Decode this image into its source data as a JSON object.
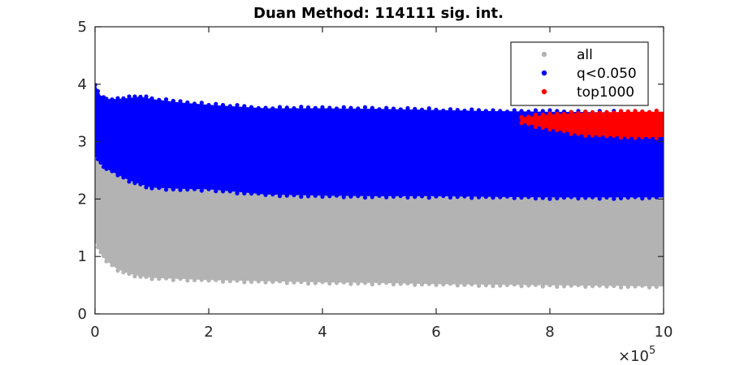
{
  "chart_data": {
    "type": "scatter",
    "title": "Duan Method: 114111 sig. int.",
    "xlabel": "",
    "ylabel": "",
    "xlim": [
      0,
      1000000
    ],
    "ylim": [
      0,
      5
    ],
    "x_ticks": [
      0,
      200000,
      400000,
      600000,
      800000,
      1000000
    ],
    "x_tick_labels": [
      "0",
      "2",
      "4",
      "6",
      "8",
      "10"
    ],
    "x_exponent_label": "×10",
    "x_exponent_power": "5",
    "y_ticks": [
      0,
      1,
      2,
      3,
      4,
      5
    ],
    "y_tick_labels": [
      "0",
      "1",
      "2",
      "3",
      "4",
      "5"
    ],
    "grid": false,
    "legend_position": "top-right",
    "series": [
      {
        "name": "all",
        "color": "#b3b3b3",
        "envelope": {
          "x": [
            0,
            10000,
            20000,
            40000,
            60000,
            80000,
            100000,
            150000,
            200000,
            300000,
            400000,
            500000,
            600000,
            700000,
            800000,
            900000,
            1000000
          ],
          "y_low": [
            1.3,
            1.1,
            0.95,
            0.8,
            0.72,
            0.68,
            0.65,
            0.63,
            0.61,
            0.59,
            0.57,
            0.56,
            0.54,
            0.53,
            0.52,
            0.51,
            0.5
          ],
          "y_high": [
            3.5,
            2.9,
            2.6,
            2.45,
            2.35,
            2.28,
            2.22,
            2.2,
            2.19,
            2.1,
            2.08,
            2.07,
            2.07,
            2.06,
            2.05,
            2.05,
            2.05
          ]
        }
      },
      {
        "name": "q<0.050",
        "color": "#0000ff",
        "envelope": {
          "x": [
            0,
            10000,
            20000,
            40000,
            60000,
            80000,
            100000,
            150000,
            200000,
            300000,
            400000,
            500000,
            600000,
            700000,
            800000,
            900000,
            1000000
          ],
          "y_low": [
            2.8,
            2.65,
            2.55,
            2.45,
            2.35,
            2.28,
            2.22,
            2.2,
            2.19,
            2.1,
            2.08,
            2.07,
            2.07,
            2.06,
            2.05,
            2.05,
            2.05
          ],
          "y_high": [
            3.95,
            3.75,
            3.72,
            3.72,
            3.74,
            3.76,
            3.72,
            3.66,
            3.62,
            3.56,
            3.56,
            3.55,
            3.53,
            3.51,
            3.5,
            3.49,
            3.48
          ]
        }
      },
      {
        "name": "top1000",
        "color": "#ff0000",
        "envelope": {
          "x": [
            750000,
            800000,
            850000,
            900000,
            950000,
            1000000
          ],
          "y_low": [
            3.35,
            3.25,
            3.15,
            3.12,
            3.1,
            3.1
          ],
          "y_high": [
            3.4,
            3.45,
            3.48,
            3.49,
            3.5,
            3.5
          ]
        }
      }
    ]
  }
}
